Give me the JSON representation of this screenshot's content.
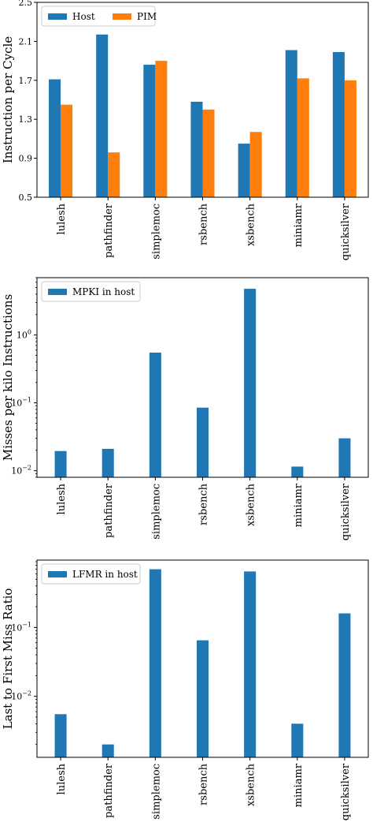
{
  "colors": {
    "host": "#1f77b4",
    "pim": "#ff7f0e"
  },
  "chart_data": [
    {
      "type": "bar",
      "categories": [
        "lulesh",
        "pathfinder",
        "simplemoc",
        "rsbench",
        "xsbench",
        "miniamr",
        "quicksilver"
      ],
      "series": [
        {
          "name": "Host",
          "values": [
            1.71,
            2.17,
            1.86,
            1.48,
            1.05,
            2.01,
            1.99
          ]
        },
        {
          "name": "PIM",
          "values": [
            1.45,
            0.96,
            1.9,
            1.4,
            1.17,
            1.72,
            1.7
          ]
        }
      ],
      "ylabel": "Instruction per Cycle",
      "ylim": [
        0.5,
        2.5
      ],
      "yticks": [
        0.5,
        0.9,
        1.3,
        1.7,
        2.1,
        2.5
      ],
      "yscale": "linear",
      "legend": "top-left",
      "grid": false
    },
    {
      "type": "bar",
      "categories": [
        "lulesh",
        "pathfinder",
        "simplemoc",
        "rsbench",
        "xsbench",
        "miniamr",
        "quicksilver"
      ],
      "series": [
        {
          "name": "MPKI in host",
          "values": [
            0.0195,
            0.021,
            0.55,
            0.085,
            4.8,
            0.0115,
            0.03
          ]
        }
      ],
      "ylabel": "Misses per kilo Instructions",
      "yscale": "log",
      "ylim": [
        0.008,
        7
      ],
      "yticks": [
        0.01,
        0.1,
        1
      ],
      "legend": "top-left",
      "grid": false
    },
    {
      "type": "bar",
      "categories": [
        "lulesh",
        "pathfinder",
        "simplemoc",
        "rsbench",
        "xsbench",
        "miniamr",
        "quicksilver"
      ],
      "series": [
        {
          "name": "LFMR in host",
          "values": [
            0.0055,
            0.002,
            0.7,
            0.065,
            0.65,
            0.004,
            0.16
          ]
        }
      ],
      "ylabel": "Last to First Miss Ratio",
      "yscale": "log",
      "ylim": [
        0.0013,
        0.95
      ],
      "yticks": [
        0.01,
        0.1
      ],
      "legend": "top-left",
      "grid": false
    }
  ]
}
